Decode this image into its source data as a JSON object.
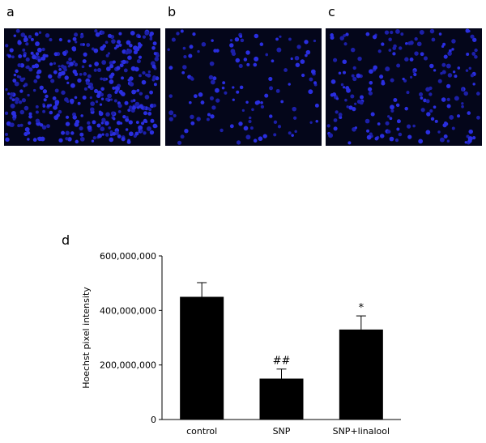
{
  "panels": [
    "a",
    "b",
    "c"
  ],
  "chart_data": {
    "type": "bar",
    "panel": "d",
    "ylabel": "Hoechst pixel intensity",
    "categories": [
      "control",
      "SNP",
      "SNP+linalool"
    ],
    "values": [
      450000000,
      150000000,
      330000000
    ],
    "errors": [
      52000000,
      35000000,
      50000000
    ],
    "annotations": [
      "",
      "##",
      "*"
    ],
    "color": "#000000",
    "ylim": [
      0,
      600000000
    ],
    "yticks": [
      0,
      {
        "value": 200000000,
        "label": "200,000,000"
      },
      {
        "value": 400000000,
        "label": "400,000,000"
      },
      {
        "value": 600000000,
        "label": "600,000,000"
      }
    ]
  }
}
